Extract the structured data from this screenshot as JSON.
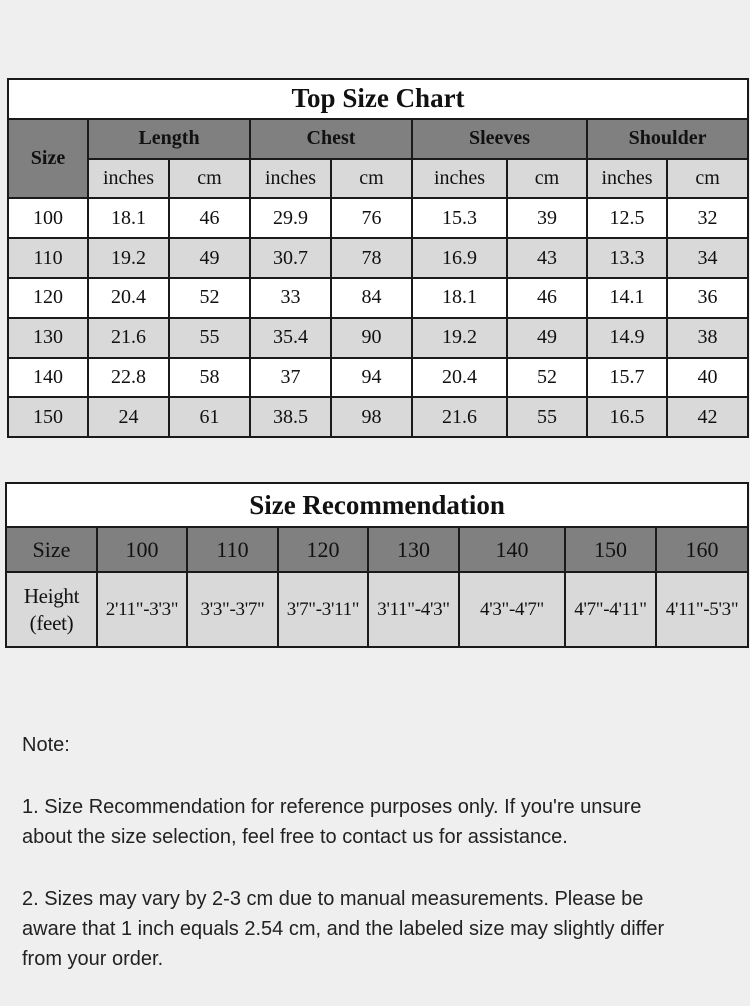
{
  "top_chart": {
    "title": "Top Size Chart",
    "size_label": "Size",
    "groups": [
      "Length",
      "Chest",
      "Sleeves",
      "Shoulder"
    ],
    "units": [
      "inches",
      "cm"
    ],
    "rows": [
      [
        "100",
        "18.1",
        "46",
        "29.9",
        "76",
        "15.3",
        "39",
        "12.5",
        "32"
      ],
      [
        "110",
        "19.2",
        "49",
        "30.7",
        "78",
        "16.9",
        "43",
        "13.3",
        "34"
      ],
      [
        "120",
        "20.4",
        "52",
        "33",
        "84",
        "18.1",
        "46",
        "14.1",
        "36"
      ],
      [
        "130",
        "21.6",
        "55",
        "35.4",
        "90",
        "19.2",
        "49",
        "14.9",
        "38"
      ],
      [
        "140",
        "22.8",
        "58",
        "37",
        "94",
        "20.4",
        "52",
        "15.7",
        "40"
      ],
      [
        "150",
        "24",
        "61",
        "38.5",
        "98",
        "21.6",
        "55",
        "16.5",
        "42"
      ]
    ]
  },
  "recommendation": {
    "title": "Size Recommendation",
    "size_label": "Size",
    "height_label": [
      "Height",
      "(feet)"
    ],
    "sizes": [
      "100",
      "110",
      "120",
      "130",
      "140",
      "150",
      "160"
    ],
    "heights": [
      "2'11\"-3'3\"",
      "3'3\"-3'7\"",
      "3'7\"-3'11\"",
      "3'11\"-4'3\"",
      "4'3\"-4'7\"",
      "4'7\"-4'11\"",
      "4'11\"-5'3\""
    ]
  },
  "notes": {
    "heading": "Note:",
    "items": [
      [
        "1. Size Recommendation for reference purposes only. If you're unsure",
        "about the size selection, feel free to contact us for assistance."
      ],
      [
        "2. Sizes may vary by 2-3 cm due to manual measurements. Please be",
        "aware that 1 inch equals 2.54 cm, and the labeled size may slightly differ",
        "from your order."
      ]
    ]
  },
  "colors": {
    "header": "#808080",
    "subheader": "#d9d9d9",
    "alt_row": "#d9d9d9",
    "background": "#efefef"
  }
}
